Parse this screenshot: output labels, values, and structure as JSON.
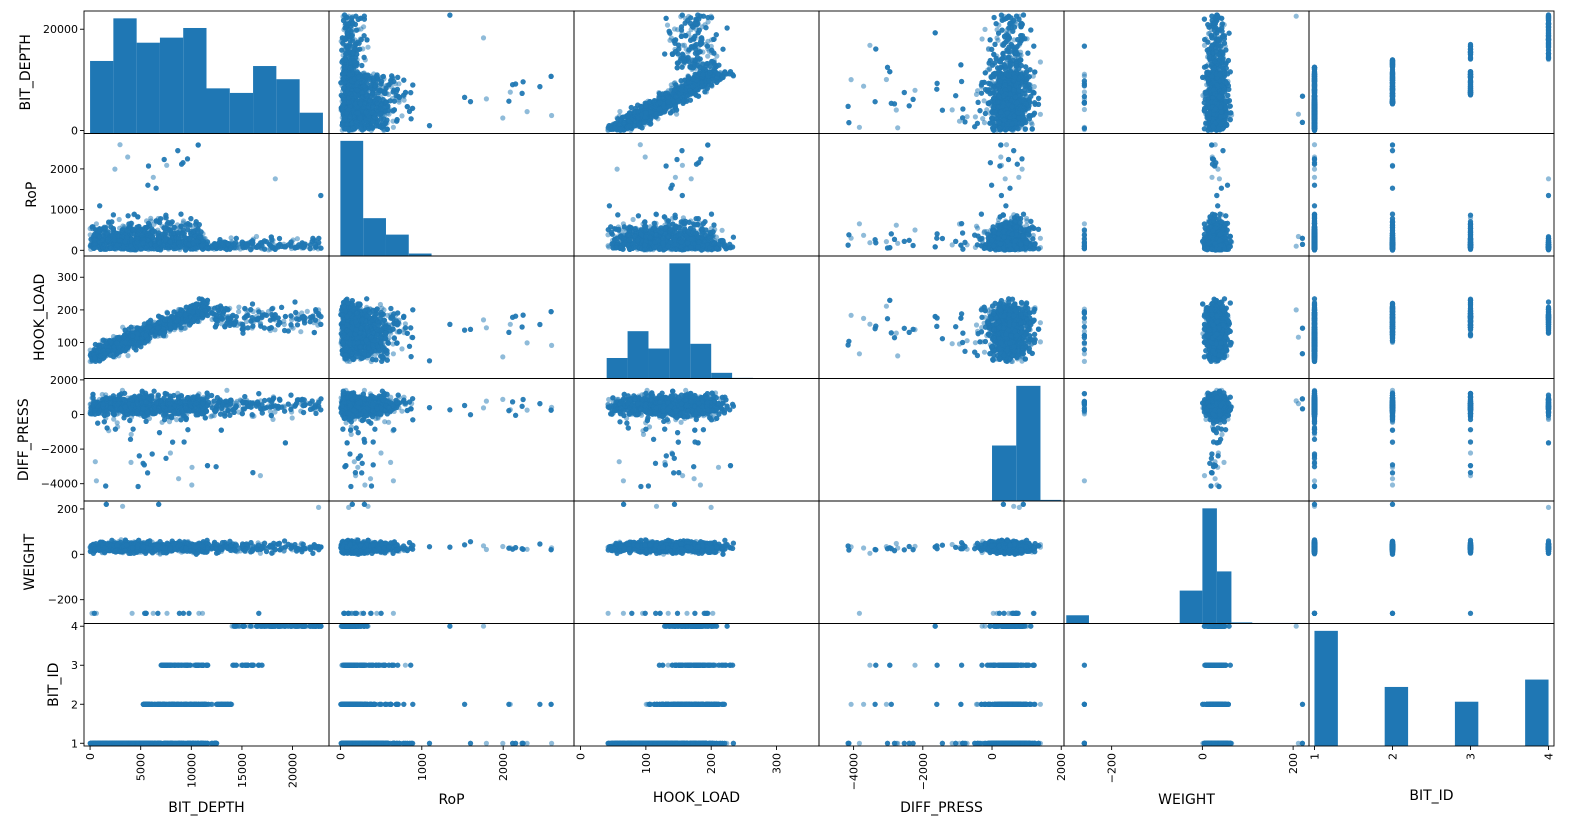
{
  "chart_data": {
    "type": "scatter",
    "subtype": "scatter-matrix",
    "variables": [
      "BIT_DEPTH",
      "RoP",
      "HOOK_LOAD",
      "DIFF_PRESS",
      "WEIGHT",
      "BIT_ID"
    ],
    "marker_color": "#1f77b4",
    "marker_alpha": 0.5,
    "diagonal": "histogram",
    "axis_ranges": {
      "BIT_DEPTH": [
        -600,
        23600
      ],
      "RoP": [
        -140,
        2870
      ],
      "HOOK_LOAD": [
        -10,
        365
      ],
      "DIFF_PRESS": [
        -5000,
        2080
      ],
      "WEIGHT": [
        -305,
        235
      ],
      "BIT_ID": [
        0.93,
        4.07
      ]
    },
    "y_ticks": {
      "BIT_DEPTH": [
        {
          "v": 0,
          "t": "0"
        },
        {
          "v": 20000,
          "t": "20000"
        }
      ],
      "RoP": [
        {
          "v": 0,
          "t": "0"
        },
        {
          "v": 1000,
          "t": "1000"
        },
        {
          "v": 2000,
          "t": "2000"
        }
      ],
      "HOOK_LOAD": [
        {
          "v": 100,
          "t": "100"
        },
        {
          "v": 200,
          "t": "200"
        },
        {
          "v": 300,
          "t": "300"
        }
      ],
      "DIFF_PRESS": [
        {
          "v": -4000,
          "t": "−4000"
        },
        {
          "v": -2000,
          "t": "−2000"
        },
        {
          "v": 0,
          "t": "0"
        },
        {
          "v": 2000,
          "t": "2000"
        }
      ],
      "WEIGHT": [
        {
          "v": -200,
          "t": "−200"
        },
        {
          "v": 0,
          "t": "0"
        },
        {
          "v": 200,
          "t": "200"
        }
      ],
      "BIT_ID": [
        {
          "v": 1,
          "t": "1"
        },
        {
          "v": 2,
          "t": "2"
        },
        {
          "v": 3,
          "t": "3"
        },
        {
          "v": 4,
          "t": "4"
        }
      ]
    },
    "x_ticks": {
      "BIT_DEPTH": [
        {
          "v": 0,
          "t": "0"
        },
        {
          "v": 5000,
          "t": "5000"
        },
        {
          "v": 10000,
          "t": "10000"
        },
        {
          "v": 15000,
          "t": "15000"
        },
        {
          "v": 20000,
          "t": "20000"
        }
      ],
      "RoP": [
        {
          "v": 0,
          "t": "0"
        },
        {
          "v": 1000,
          "t": "1000"
        },
        {
          "v": 2000,
          "t": "2000"
        }
      ],
      "HOOK_LOAD": [
        {
          "v": 0,
          "t": "0"
        },
        {
          "v": 100,
          "t": "100"
        },
        {
          "v": 200,
          "t": "200"
        },
        {
          "v": 300,
          "t": "300"
        }
      ],
      "DIFF_PRESS": [
        {
          "v": -4000,
          "t": "−4000"
        },
        {
          "v": -2000,
          "t": "−2000"
        },
        {
          "v": 0,
          "t": "0"
        },
        {
          "v": 2000,
          "t": "2000"
        }
      ],
      "WEIGHT": [
        {
          "v": -200,
          "t": "−200"
        },
        {
          "v": 0,
          "t": "0"
        },
        {
          "v": 200,
          "t": "200"
        }
      ],
      "BIT_ID": [
        {
          "v": 1,
          "t": "1"
        },
        {
          "v": 2,
          "t": "2"
        },
        {
          "v": 3,
          "t": "3"
        },
        {
          "v": 4,
          "t": "4"
        }
      ]
    },
    "histograms": {
      "BIT_DEPTH": {
        "edges": [
          0,
          2300,
          4600,
          6900,
          9200,
          11500,
          13800,
          16100,
          18400,
          20700,
          23000
        ],
        "counts": [
          14300,
          22700,
          17900,
          18900,
          20800,
          8900,
          8000,
          13300,
          10700,
          4100
        ]
      },
      "RoP": {
        "edges": [
          0,
          280,
          560,
          840,
          1120,
          1400,
          1680,
          1960,
          2240,
          2520,
          2800
        ],
        "counts": [
          2800,
          920,
          520,
          60,
          10,
          4,
          2,
          1,
          1,
          1
        ]
      },
      "HOOK_LOAD": {
        "edges": [
          40,
          72,
          104,
          136,
          168,
          200,
          232,
          264,
          296,
          328,
          360
        ],
        "counts": [
          65,
          150,
          95,
          365,
          110,
          18,
          2,
          1,
          1,
          1
        ]
      },
      "DIFF_PRESS": {
        "edges": [
          -5000,
          -4400,
          -3800,
          -3200,
          -2600,
          -2000,
          -1400,
          -800,
          0,
          700,
          1400,
          2000
        ],
        "counts": [
          0,
          0,
          1,
          2,
          3,
          4,
          5,
          6,
          2000,
          4150,
          40
        ]
      },
      "WEIGHT": {
        "edges": [
          -300,
          -250,
          -200,
          -150,
          -100,
          -50,
          0,
          32,
          64,
          110,
          160,
          230
        ],
        "counts": [
          15,
          0,
          0,
          0,
          0,
          60,
          210,
          95,
          2,
          1,
          1
        ]
      },
      "BIT_ID": {
        "edges": [
          1,
          1.3,
          1.6,
          1.9,
          2.2,
          2.5,
          2.8,
          3.1,
          3.4,
          3.7,
          4.0
        ],
        "counts": [
          3900,
          0,
          0,
          2000,
          0,
          0,
          1500,
          0,
          0,
          2250
        ]
      }
    },
    "xlabels": [
      "BIT_DEPTH",
      "RoP",
      "HOOK_LOAD",
      "DIFF_PRESS",
      "WEIGHT",
      "BIT_ID"
    ],
    "ylabels": [
      "BIT_DEPTH",
      "RoP",
      "HOOK_LOAD",
      "DIFF_PRESS",
      "WEIGHT",
      "BIT_ID"
    ]
  }
}
